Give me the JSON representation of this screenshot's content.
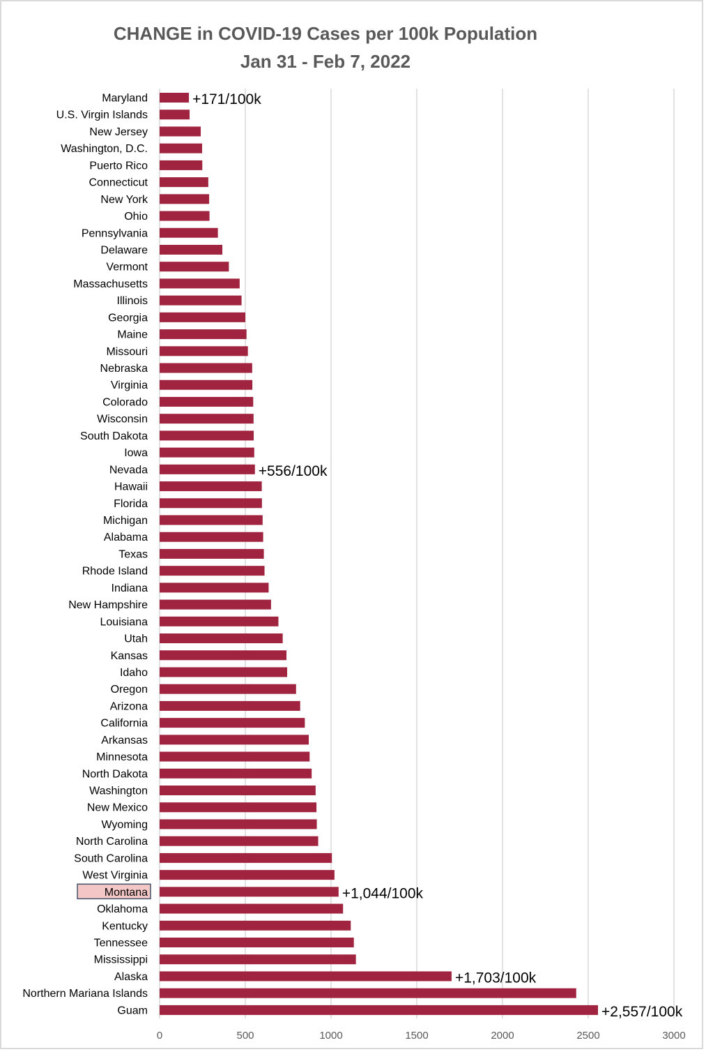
{
  "chart_data": {
    "type": "bar",
    "orientation": "horizontal",
    "title": "CHANGE in COVID-19 Cases per 100k Population",
    "subtitle": "Jan 31 - Feb 7, 2022",
    "xlabel": "",
    "ylabel": "",
    "xlim": [
      0,
      3000
    ],
    "xticks": [
      0,
      500,
      1000,
      1500,
      2000,
      2500,
      3000
    ],
    "grid": true,
    "bar_color": "#A0243F",
    "highlight_color": "#F4C7C7",
    "highlight_border_color": "#44546A",
    "highlighted_category": "Montana",
    "categories": [
      "Maryland",
      "U.S. Virgin Islands",
      "New Jersey",
      "Washington, D.C.",
      "Puerto Rico",
      "Connecticut",
      "New York",
      "Ohio",
      "Pennsylvania",
      "Delaware",
      "Vermont",
      "Massachusetts",
      "Illinois",
      "Georgia",
      "Maine",
      "Missouri",
      "Nebraska",
      "Virginia",
      "Colorado",
      "Wisconsin",
      "South Dakota",
      "Iowa",
      "Nevada",
      "Hawaii",
      "Florida",
      "Michigan",
      "Alabama",
      "Texas",
      "Rhode Island",
      "Indiana",
      "New Hampshire",
      "Louisiana",
      "Utah",
      "Kansas",
      "Idaho",
      "Oregon",
      "Arizona",
      "California",
      "Arkansas",
      "Minnesota",
      "North Dakota",
      "Washington",
      "New Mexico",
      "Wyoming",
      "North Carolina",
      "South Carolina",
      "West Virginia",
      "Montana",
      "Oklahoma",
      "Kentucky",
      "Tennessee",
      "Mississippi",
      "Alaska",
      "Northern Mariana Islands",
      "Guam"
    ],
    "values": [
      171,
      175,
      240,
      248,
      249,
      284,
      289,
      291,
      340,
      366,
      404,
      467,
      478,
      500,
      507,
      515,
      540,
      541,
      546,
      548,
      549,
      552,
      556,
      596,
      597,
      601,
      604,
      608,
      612,
      636,
      650,
      693,
      718,
      740,
      744,
      796,
      820,
      847,
      870,
      875,
      887,
      910,
      915,
      917,
      925,
      1005,
      1020,
      1044,
      1070,
      1115,
      1133,
      1145,
      1703,
      2430,
      2557
    ],
    "data_labels": [
      {
        "category": "Maryland",
        "text": "+171/100k"
      },
      {
        "category": "Nevada",
        "text": "+556/100k"
      },
      {
        "category": "Montana",
        "text": "+1,044/100k"
      },
      {
        "category": "Alaska",
        "text": "+1,703/100k"
      },
      {
        "category": "Guam",
        "text": "+2,557/100k"
      }
    ]
  }
}
